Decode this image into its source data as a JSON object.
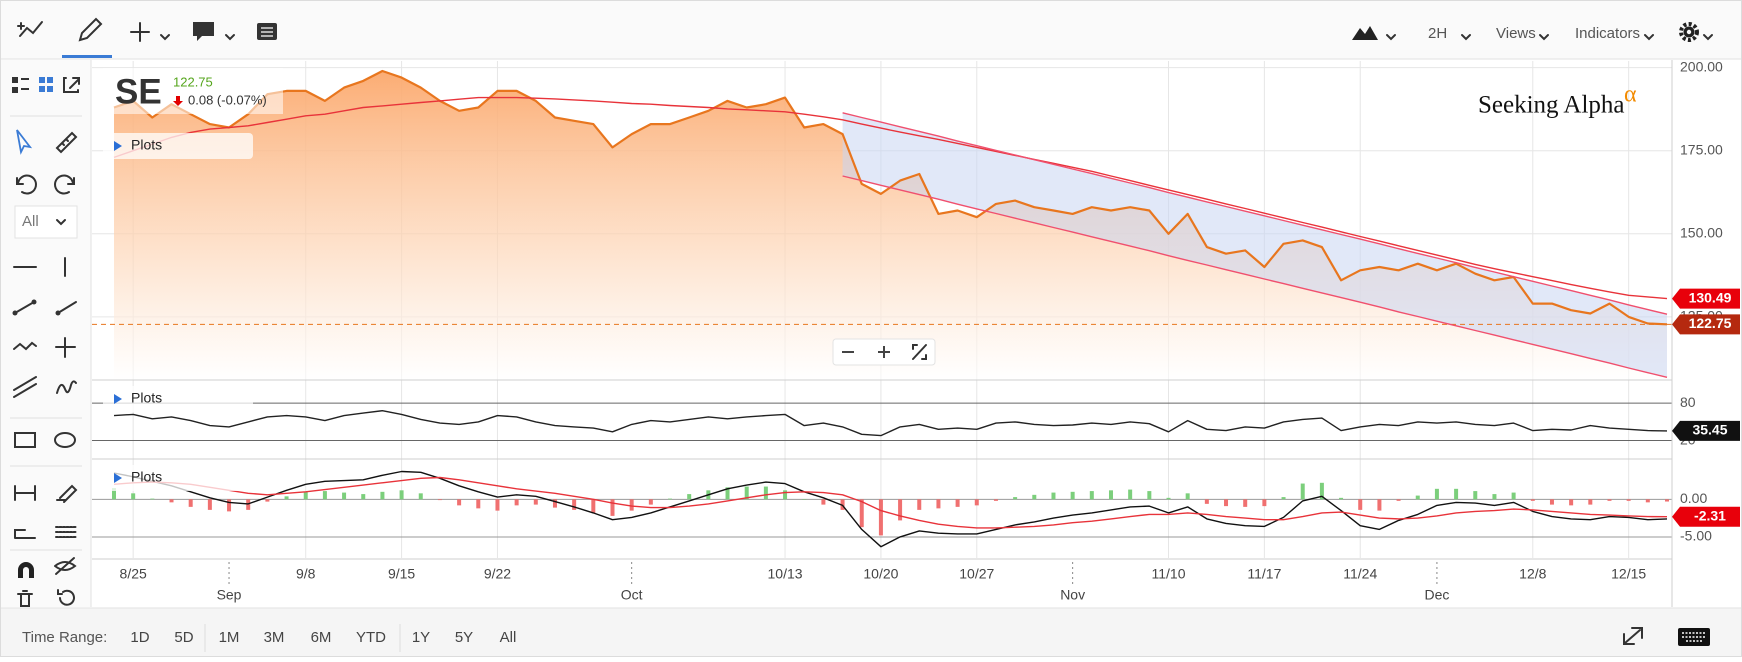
{
  "toolbar": {
    "interval": "2H",
    "views": "Views",
    "indicators": "Indicators"
  },
  "sidebar": {
    "filter": "All"
  },
  "quote": {
    "symbol": "SE",
    "price": 122.75,
    "change": "0.08 (-0.07%)"
  },
  "logo": {
    "text": "Seeking Alpha",
    "mark": "α"
  },
  "time_range": {
    "label": "Time Range:",
    "buttons": [
      "1D",
      "5D",
      "1M",
      "3M",
      "6M",
      "YTD",
      "1Y",
      "5Y",
      "All"
    ]
  },
  "chart_data": [
    {
      "type": "area",
      "plots_label": "Plots",
      "categories": [
        null,
        "8/25",
        null,
        null,
        null,
        null,
        null,
        null,
        null,
        null,
        "9/8",
        null,
        null,
        null,
        null,
        "9/15",
        null,
        null,
        null,
        null,
        "9/22",
        null,
        null,
        null,
        null,
        null,
        null,
        null,
        null,
        null,
        null,
        null,
        null,
        null,
        null,
        "10/13",
        null,
        null,
        null,
        null,
        "10/20",
        null,
        null,
        null,
        null,
        "10/27",
        null,
        null,
        null,
        null,
        null,
        null,
        null,
        null,
        null,
        "11/10",
        null,
        null,
        null,
        null,
        "11/17",
        null,
        null,
        null,
        null,
        "11/24",
        null,
        null,
        null,
        null,
        null,
        null,
        null,
        null,
        "12/8",
        null,
        null,
        null,
        null,
        "12/15",
        null,
        null
      ],
      "months": [
        null,
        null,
        null,
        null,
        null,
        null,
        "Sep",
        null,
        null,
        null,
        null,
        null,
        null,
        null,
        null,
        null,
        null,
        null,
        null,
        null,
        null,
        null,
        null,
        null,
        null,
        null,
        null,
        "Oct",
        null,
        null,
        null,
        null,
        null,
        null,
        null,
        null,
        null,
        null,
        null,
        null,
        null,
        null,
        null,
        null,
        null,
        null,
        null,
        null,
        null,
        null,
        "Nov",
        null,
        null,
        null,
        null,
        null,
        null,
        null,
        null,
        null,
        null,
        null,
        null,
        null,
        null,
        null,
        null,
        null,
        null,
        "Dec",
        null,
        null,
        null,
        null,
        null,
        null,
        null,
        null,
        null,
        null,
        null,
        null
      ],
      "ylim": [
        106,
        202
      ],
      "yticks": [
        {
          "value": 200,
          "label": "200.00"
        },
        {
          "value": 175,
          "label": "175.00"
        },
        {
          "value": 150,
          "label": "150.00"
        },
        {
          "value": 125,
          "label": "125.00"
        }
      ],
      "grid": true,
      "grid_color": "#e6e6e6",
      "series": [
        {
          "type": "area",
          "color": "#e8761e",
          "last_value_line": true,
          "tag_color": "#b5290f",
          "values": [
            188,
            190,
            185,
            189,
            186,
            183,
            182,
            186,
            192,
            193,
            193,
            190,
            194,
            196,
            199,
            197,
            194,
            190,
            187,
            188,
            193,
            193,
            190,
            185,
            184,
            183,
            176,
            180,
            183,
            183,
            185,
            187,
            190,
            188,
            189,
            191,
            182,
            183,
            180,
            165,
            162,
            166,
            168,
            156,
            157,
            155,
            159,
            160,
            158,
            157,
            156,
            158,
            157,
            158,
            157,
            150,
            156,
            146,
            144,
            145,
            140,
            147,
            148,
            146,
            136,
            139,
            140,
            139,
            141,
            139,
            141,
            138,
            136,
            137,
            129,
            129,
            127,
            126,
            129,
            125,
            123,
            122.75
          ]
        },
        {
          "type": "line",
          "color": "#e8333a",
          "tag_color": "#e8000b",
          "values": [
            173,
            175,
            177,
            179,
            180.5,
            181.5,
            182,
            182.5,
            183.5,
            184.5,
            185.5,
            186,
            187,
            188,
            188.5,
            189,
            189.5,
            190,
            190.5,
            191,
            191,
            191,
            190.8,
            190.6,
            190.3,
            190,
            189.6,
            189.2,
            189,
            188.6,
            188.3,
            188,
            187.6,
            187.3,
            187,
            186.7,
            186,
            185.2,
            184.3,
            183,
            181.8,
            180.6,
            179.5,
            178.4,
            177.2,
            176,
            174.8,
            173.6,
            172.4,
            171.2,
            170,
            168.8,
            167.4,
            166,
            164.6,
            163.2,
            161.8,
            160.4,
            159,
            157.6,
            156.2,
            154.8,
            153.4,
            152,
            150.6,
            149.2,
            147.8,
            146.4,
            145,
            143.6,
            142.2,
            140.8,
            139.5,
            138.3,
            137.1,
            135.9,
            134.7,
            133.6,
            132.5,
            131.5,
            131,
            130.49
          ]
        },
        {
          "type": "line",
          "color": "#f0506e",
          "channel_fill": "#c9d6f2",
          "values": [
            null,
            null,
            null,
            null,
            null,
            null,
            null,
            null,
            null,
            null,
            null,
            null,
            null,
            null,
            null,
            null,
            null,
            null,
            null,
            null,
            null,
            null,
            null,
            null,
            null,
            null,
            null,
            null,
            null,
            null,
            null,
            null,
            null,
            null,
            null,
            null,
            null,
            null,
            186.4,
            185.0,
            183.6,
            182.2,
            180.8,
            179.4,
            177.9,
            176.5,
            175.1,
            173.7,
            172.3,
            170.9,
            169.5,
            168.1,
            166.7,
            165.3,
            163.9,
            162.4,
            161.0,
            159.6,
            158.2,
            156.8,
            155.4,
            154.0,
            152.6,
            151.2,
            149.8,
            148.4,
            147.0,
            145.5,
            144.1,
            142.7,
            141.3,
            139.9,
            138.5,
            137.1,
            135.7,
            134.3,
            132.9,
            131.5,
            130.1,
            128.6,
            127.2,
            125.8
          ]
        },
        {
          "type": "line",
          "color": "#f0506e",
          "values": [
            null,
            null,
            null,
            null,
            null,
            null,
            null,
            null,
            null,
            null,
            null,
            null,
            null,
            null,
            null,
            null,
            null,
            null,
            null,
            null,
            null,
            null,
            null,
            null,
            null,
            null,
            null,
            null,
            null,
            null,
            null,
            null,
            null,
            null,
            null,
            null,
            null,
            null,
            167.4,
            166.0,
            164.6,
            163.2,
            161.8,
            160.4,
            158.9,
            157.5,
            156.1,
            154.7,
            153.3,
            151.9,
            150.5,
            149.1,
            147.7,
            146.3,
            144.9,
            143.4,
            142.0,
            140.6,
            139.2,
            137.8,
            136.4,
            135.0,
            133.6,
            132.2,
            130.8,
            129.4,
            128.0,
            126.5,
            125.1,
            123.7,
            122.3,
            120.9,
            119.5,
            118.1,
            116.7,
            115.3,
            113.9,
            112.5,
            111.1,
            109.6,
            108.2,
            106.8
          ]
        }
      ]
    },
    {
      "type": "line",
      "plots_label": "Plots",
      "ylim": [
        -8,
        114
      ],
      "yticks": [
        80,
        20
      ],
      "grid": true,
      "grid_color": "#666666",
      "series": [
        {
          "type": "line",
          "color": "#222222",
          "tag_color": "#111111",
          "values": [
            60,
            62,
            55,
            58,
            52,
            44,
            42,
            50,
            58,
            60,
            58,
            52,
            60,
            64,
            68,
            62,
            54,
            48,
            46,
            50,
            60,
            58,
            50,
            44,
            42,
            40,
            34,
            46,
            52,
            50,
            54,
            58,
            55,
            58,
            60,
            62,
            44,
            48,
            42,
            30,
            28,
            42,
            46,
            38,
            40,
            38,
            48,
            50,
            46,
            44,
            45,
            48,
            46,
            50,
            47,
            34,
            52,
            38,
            36,
            42,
            40,
            50,
            54,
            56,
            36,
            42,
            46,
            44,
            50,
            48,
            50,
            46,
            44,
            48,
            36,
            38,
            37,
            44,
            40,
            38,
            36,
            35.45
          ]
        }
      ]
    },
    {
      "type": "line",
      "plots_label": "Plots",
      "ylim": [
        -7.8,
        5.1
      ],
      "yticks": [
        {
          "value": 0,
          "label": "0.00"
        },
        {
          "value": -5,
          "label": "-5.00"
        }
      ],
      "grid": true,
      "grid_color": "#999999",
      "series": [
        {
          "type": "bar",
          "color": "#7ccf7c",
          "negative_color": "#f07070",
          "values": [
            1.5,
            0.8,
            0.1,
            -0.4,
            -1.0,
            -1.4,
            -1.6,
            -1.4,
            -0.3,
            0.4,
            1.0,
            1.1,
            0.9,
            0.7,
            1.0,
            1.2,
            0.8,
            -0.1,
            -0.8,
            -1.2,
            -1.5,
            -0.8,
            -0.7,
            -1.1,
            -1.4,
            -1.8,
            -2.2,
            -1.5,
            -0.7,
            0.1,
            0.7,
            1.2,
            1.6,
            1.7,
            1.7,
            1.2,
            0.0,
            -0.7,
            -1.4,
            -3.7,
            -4.8,
            -2.8,
            -1.4,
            -1.2,
            -1.0,
            -0.8,
            -0.2,
            0.3,
            0.6,
            0.9,
            1.0,
            1.1,
            1.2,
            1.3,
            1.1,
            0.2,
            0.8,
            -0.6,
            -0.9,
            -1.0,
            -0.9,
            0.3,
            2.1,
            2.2,
            0.2,
            -1.4,
            -1.5,
            -0.2,
            0.5,
            1.4,
            1.4,
            1.1,
            0.7,
            0.9,
            -0.2,
            -0.7,
            -0.8,
            -0.7,
            -0.2,
            -0.2,
            -0.4,
            -0.29
          ]
        },
        {
          "type": "line",
          "color": "#111111",
          "values": [
            3.5,
            3.0,
            2.4,
            1.8,
            1.0,
            0.2,
            -0.4,
            -0.6,
            0.3,
            1.2,
            2.0,
            2.4,
            2.5,
            2.6,
            3.2,
            3.7,
            3.6,
            2.8,
            1.8,
            1.0,
            0.3,
            0.6,
            0.4,
            -0.3,
            -1.0,
            -1.8,
            -2.7,
            -2.4,
            -1.8,
            -1.0,
            -0.2,
            0.6,
            1.4,
            1.9,
            2.3,
            2.1,
            1.0,
            0.2,
            -0.8,
            -4.0,
            -6.3,
            -5.0,
            -4.2,
            -4.5,
            -4.6,
            -4.6,
            -4.0,
            -3.4,
            -3.0,
            -2.5,
            -2.1,
            -1.8,
            -1.4,
            -1.0,
            -0.9,
            -1.8,
            -1.0,
            -2.6,
            -3.2,
            -3.5,
            -3.6,
            -2.4,
            -0.2,
            0.4,
            -1.5,
            -3.5,
            -4.0,
            -2.8,
            -2.0,
            -0.8,
            -0.4,
            -0.5,
            -0.8,
            -0.4,
            -1.6,
            -2.3,
            -2.6,
            -2.7,
            -2.3,
            -2.4,
            -2.7,
            -2.6
          ]
        },
        {
          "type": "line",
          "color": "#e8333a",
          "tag_color": "#e8000b",
          "values": [
            2.0,
            2.2,
            2.3,
            2.2,
            2.0,
            1.6,
            1.2,
            0.8,
            0.6,
            0.8,
            1.0,
            1.3,
            1.6,
            1.9,
            2.2,
            2.5,
            2.8,
            2.9,
            2.6,
            2.2,
            1.8,
            1.4,
            1.1,
            0.8,
            0.4,
            0.0,
            -0.5,
            -0.9,
            -1.1,
            -1.1,
            -0.9,
            -0.6,
            -0.2,
            0.2,
            0.6,
            0.9,
            1.0,
            0.9,
            0.6,
            -0.3,
            -1.5,
            -2.2,
            -2.8,
            -3.3,
            -3.6,
            -3.8,
            -3.8,
            -3.7,
            -3.6,
            -3.4,
            -3.1,
            -2.9,
            -2.6,
            -2.3,
            -2.0,
            -2.0,
            -1.8,
            -2.0,
            -2.3,
            -2.5,
            -2.7,
            -2.7,
            -2.3,
            -1.8,
            -1.7,
            -2.1,
            -2.5,
            -2.6,
            -2.5,
            -2.2,
            -1.8,
            -1.6,
            -1.5,
            -1.3,
            -1.4,
            -1.6,
            -1.8,
            -2.0,
            -2.1,
            -2.2,
            -2.3,
            -2.31
          ]
        }
      ]
    }
  ]
}
